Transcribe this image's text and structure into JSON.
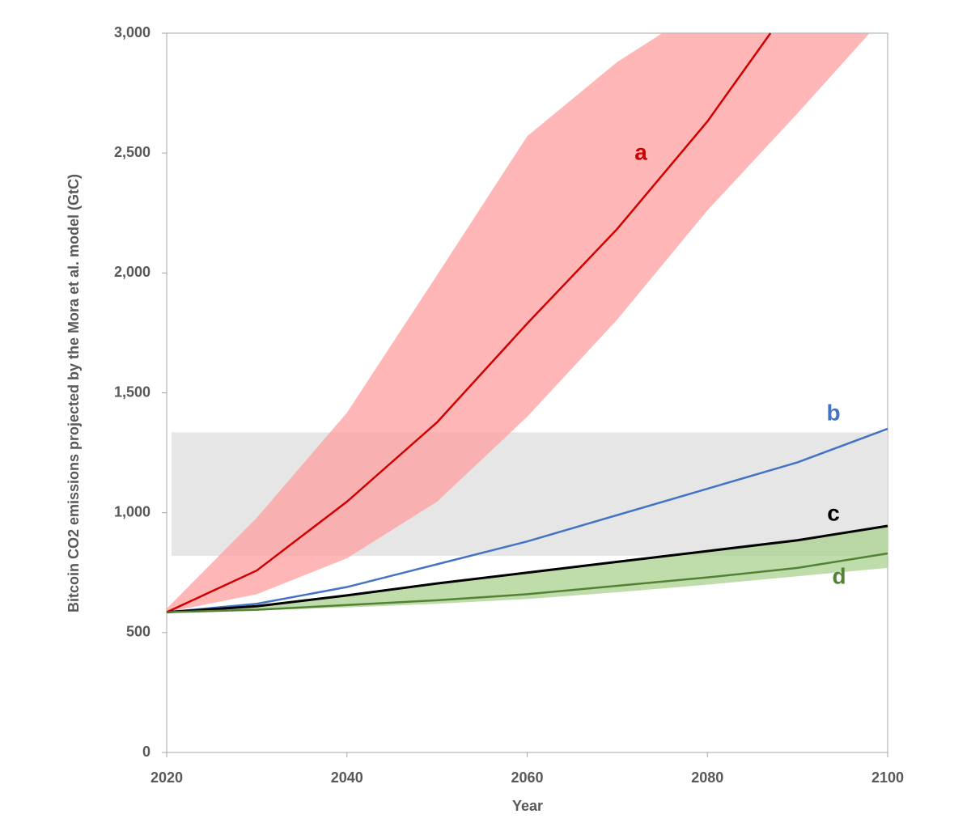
{
  "chart_data": {
    "type": "line",
    "ylabel": "Bitcoin CO2 emissions projected by the Mora et al. model (GtC)",
    "xlabel": "Year",
    "xlim": [
      2020,
      2100
    ],
    "xticks": [
      2020,
      2040,
      2060,
      2080,
      2100
    ],
    "ylim": [
      0,
      3000
    ],
    "yticks": [
      0,
      500,
      {
        "value": 1000,
        "label": "1,000"
      },
      {
        "value": 1500,
        "label": "1,500"
      },
      {
        "value": 2000,
        "label": "2,000"
      },
      {
        "value": 2500,
        "label": "2,500"
      },
      {
        "value": 3000,
        "label": "3,000"
      }
    ],
    "reference_band": {
      "x": [
        2020,
        2100
      ],
      "y": [
        820,
        1335
      ],
      "color": "#e3e3e3"
    },
    "series": [
      {
        "name": "a",
        "color": "#d00000",
        "band_color": "#ff9e9e",
        "x": [
          2020,
          2030,
          2040,
          2050,
          2060,
          2070,
          2080,
          2087
        ],
        "values": [
          585,
          759,
          1046,
          1377,
          1789,
          2184,
          2632,
          3000
        ],
        "band_x_upper": [
          2020,
          2030,
          2040,
          2050,
          2060,
          2070,
          2075
        ],
        "band_upper": [
          600,
          979,
          1417,
          1991,
          2570,
          2880,
          3000
        ],
        "band_x_lower": [
          2020,
          2030,
          2040,
          2050,
          2060,
          2070,
          2080,
          2090,
          2098
        ],
        "band_lower": [
          585,
          660,
          810,
          1046,
          1400,
          1806,
          2261,
          2666,
          3000
        ]
      },
      {
        "name": "b",
        "color": "#4472c4",
        "x": [
          2020,
          2030,
          2040,
          2050,
          2060,
          2070,
          2080,
          2090,
          2100
        ],
        "values": [
          585,
          620,
          690,
          785,
          880,
          990,
          1100,
          1210,
          1350
        ]
      },
      {
        "name": "c",
        "color": "#000000",
        "x": [
          2020,
          2030,
          2040,
          2050,
          2060,
          2070,
          2080,
          2090,
          2100
        ],
        "values": [
          585,
          610,
          655,
          705,
          750,
          795,
          840,
          885,
          945
        ]
      },
      {
        "name": "d",
        "color": "#548235",
        "band_color": "#a9d18e",
        "x": [
          2020,
          2030,
          2040,
          2050,
          2060,
          2070,
          2080,
          2090,
          2100
        ],
        "values": [
          585,
          595,
          615,
          635,
          660,
          695,
          730,
          770,
          830
        ],
        "band_x_upper": [
          2020,
          2030,
          2040,
          2050,
          2060,
          2070,
          2080,
          2090,
          2100
        ],
        "band_upper": [
          585,
          610,
          655,
          705,
          750,
          795,
          840,
          885,
          945
        ],
        "band_x_lower": [
          2020,
          2030,
          2040,
          2050,
          2060,
          2070,
          2080,
          2090,
          2100
        ],
        "band_lower": [
          585,
          592,
          605,
          620,
          640,
          668,
          700,
          735,
          770
        ]
      }
    ]
  }
}
